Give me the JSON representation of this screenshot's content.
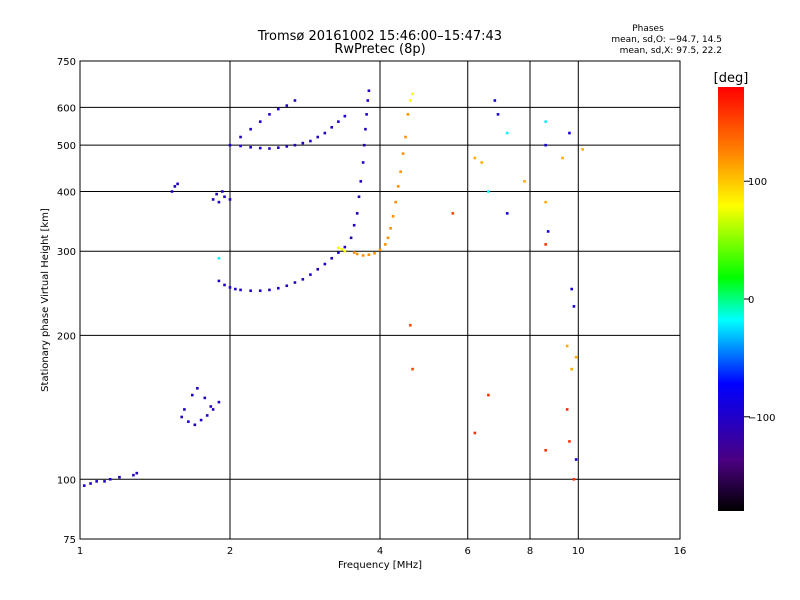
{
  "header": {
    "title_line1": "Tromsø 20161002 15:46:00–15:47:43",
    "title_line2": "RwPretec (8p)",
    "info_title": "Phases",
    "info_o": "mean, sd,O: −94.7, 14.5",
    "info_x": "mean, sd,X:  97.5, 22.2"
  },
  "chart_data": {
    "type": "scatter",
    "xlabel": "Frequency [MHz]",
    "ylabel": "Stationary phase Virtual Height [km]",
    "xscale": "log2",
    "yscale": "log",
    "xlim": [
      1,
      16
    ],
    "ylim": [
      75,
      750
    ],
    "x_ticks": [
      1,
      2,
      4,
      6,
      8,
      10,
      16
    ],
    "x_tick_labels": [
      "1",
      "2",
      "4",
      "6",
      "8",
      "10",
      "16"
    ],
    "y_ticks": [
      75,
      100,
      200,
      300,
      400,
      500,
      600,
      750
    ],
    "y_tick_labels": [
      "75",
      "100",
      "200",
      "300",
      "400",
      "500",
      "600",
      "750"
    ],
    "grid": true,
    "colorbar": {
      "label": "[deg]",
      "range": [
        -180,
        180
      ],
      "ticks": [
        100,
        0,
        -100
      ],
      "tick_labels": [
        "100",
        "0",
        "−100"
      ]
    },
    "series": [
      {
        "phase": -100,
        "x": [
          1.02,
          1.05,
          1.08,
          1.12,
          1.15,
          1.2,
          1.28,
          1.3
        ],
        "y": [
          97,
          98,
          99,
          99,
          100,
          101,
          102,
          103
        ]
      },
      {
        "phase": -100,
        "x": [
          1.9,
          1.95,
          2.0,
          2.05,
          2.1,
          2.2,
          2.3,
          2.4,
          2.5,
          2.6,
          2.7,
          2.8,
          2.9,
          3.0,
          3.1,
          3.2,
          3.3,
          3.4
        ],
        "y": [
          260,
          255,
          252,
          250,
          249,
          248,
          248,
          249,
          251,
          254,
          258,
          262,
          268,
          275,
          282,
          290,
          298,
          306
        ]
      },
      {
        "phase": -100,
        "x": [
          3.5,
          3.55,
          3.6,
          3.63,
          3.66,
          3.7,
          3.72,
          3.74,
          3.76,
          3.78,
          3.8
        ],
        "y": [
          320,
          340,
          360,
          390,
          420,
          460,
          500,
          540,
          580,
          620,
          650
        ]
      },
      {
        "phase": -100,
        "x": [
          2.0,
          2.1,
          2.2,
          2.3,
          2.4,
          2.5,
          2.6,
          2.7,
          2.8,
          2.9,
          3.0,
          3.1,
          3.2,
          3.3,
          3.4
        ],
        "y": [
          500,
          498,
          495,
          493,
          492,
          494,
          497,
          500,
          505,
          510,
          520,
          530,
          545,
          560,
          575
        ]
      },
      {
        "phase": -100,
        "x": [
          2.1,
          2.2,
          2.3,
          2.4,
          2.5,
          2.6,
          2.7
        ],
        "y": [
          520,
          540,
          560,
          580,
          595,
          605,
          620
        ]
      },
      {
        "phase": -100,
        "x": [
          1.85,
          1.9,
          1.95,
          2.0,
          1.88,
          1.93
        ],
        "y": [
          385,
          380,
          390,
          385,
          395,
          400
        ]
      },
      {
        "phase": -100,
        "x": [
          1.6,
          1.65,
          1.7,
          1.75,
          1.8,
          1.85,
          1.9,
          1.68,
          1.72,
          1.78,
          1.83,
          1.62
        ],
        "y": [
          135,
          132,
          130,
          133,
          136,
          140,
          145,
          150,
          155,
          148,
          142,
          140
        ]
      },
      {
        "phase": -100,
        "x": [
          1.53,
          1.55,
          1.57
        ],
        "y": [
          400,
          410,
          415
        ]
      },
      {
        "phase": 120,
        "x": [
          3.55,
          3.6,
          3.7,
          3.8,
          3.9,
          4.0,
          4.1,
          4.15,
          4.2,
          4.25,
          4.3,
          4.35,
          4.4,
          4.45,
          4.5,
          4.55
        ],
        "y": [
          298,
          296,
          294,
          295,
          297,
          302,
          310,
          320,
          335,
          355,
          380,
          410,
          440,
          480,
          520,
          580
        ]
      },
      {
        "phase": 80,
        "x": [
          3.3,
          3.35,
          3.4,
          4.6,
          4.65
        ],
        "y": [
          305,
          303,
          300,
          620,
          640
        ]
      },
      {
        "phase": 150,
        "x": [
          5.6,
          4.6,
          4.65
        ],
        "y": [
          360,
          210,
          170
        ]
      },
      {
        "phase": -20,
        "x": [
          1.9,
          6.6,
          7.2,
          8.6
        ],
        "y": [
          290,
          400,
          530,
          560
        ]
      },
      {
        "phase": 110,
        "x": [
          6.2,
          6.4,
          7.8,
          8.6,
          9.3,
          9.5,
          9.7,
          9.9,
          10.2
        ],
        "y": [
          470,
          460,
          420,
          380,
          470,
          190,
          170,
          180,
          490
        ]
      },
      {
        "phase": -90,
        "x": [
          6.8,
          6.9,
          7.2,
          8.6,
          8.7,
          9.6,
          9.7,
          9.8,
          9.9
        ],
        "y": [
          620,
          580,
          360,
          500,
          330,
          530,
          250,
          230,
          110
        ]
      },
      {
        "phase": 160,
        "x": [
          6.2,
          6.6,
          8.6,
          8.6,
          9.5,
          9.6,
          9.8
        ],
        "y": [
          125,
          150,
          310,
          115,
          140,
          120,
          100
        ]
      }
    ]
  }
}
